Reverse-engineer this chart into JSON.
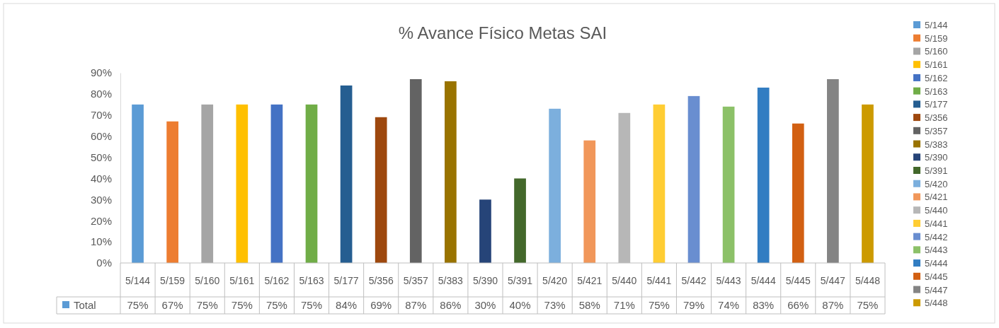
{
  "chart_data": {
    "type": "bar",
    "title": "% Avance Físico Metas SAI",
    "categories": [
      "5/144",
      "5/159",
      "5/160",
      "5/161",
      "5/162",
      "5/163",
      "5/177",
      "5/356",
      "5/357",
      "5/383",
      "5/390",
      "5/391",
      "5/420",
      "5/421",
      "5/440",
      "5/441",
      "5/442",
      "5/443",
      "5/444",
      "5/445",
      "5/447",
      "5/448"
    ],
    "series": [
      {
        "name": "Total",
        "color": "#5b9bd5",
        "values": [
          75,
          67,
          75,
          75,
          75,
          75,
          84,
          69,
          87,
          86,
          30,
          40,
          73,
          58,
          71,
          75,
          79,
          74,
          83,
          66,
          87,
          75
        ],
        "value_labels": [
          "75%",
          "67%",
          "75%",
          "75%",
          "75%",
          "75%",
          "84%",
          "69%",
          "87%",
          "86%",
          "30%",
          "40%",
          "73%",
          "58%",
          "71%",
          "75%",
          "79%",
          "74%",
          "83%",
          "66%",
          "87%",
          "75%"
        ],
        "colors": [
          "#5b9bd5",
          "#ed7d31",
          "#a5a5a5",
          "#ffc000",
          "#4472c4",
          "#70ad47",
          "#255e91",
          "#9e480e",
          "#636363",
          "#997300",
          "#264478",
          "#43682b",
          "#7cafdd",
          "#f1975a",
          "#b7b7b7",
          "#ffcd33",
          "#698ed0",
          "#8cc168",
          "#327dc2",
          "#d26012",
          "#848484",
          "#cc9a00"
        ]
      }
    ],
    "ylim": [
      0,
      90
    ],
    "yticks": [
      {
        "value": 0,
        "label": "0%"
      },
      {
        "value": 10,
        "label": "10%"
      },
      {
        "value": 20,
        "label": "20%"
      },
      {
        "value": 30,
        "label": "30%"
      },
      {
        "value": 40,
        "label": "40%"
      },
      {
        "value": 50,
        "label": "50%"
      },
      {
        "value": 60,
        "label": "60%"
      },
      {
        "value": 70,
        "label": "70%"
      },
      {
        "value": 80,
        "label": "80%"
      },
      {
        "value": 90,
        "label": "90%"
      }
    ],
    "legend": "bottom left"
  }
}
